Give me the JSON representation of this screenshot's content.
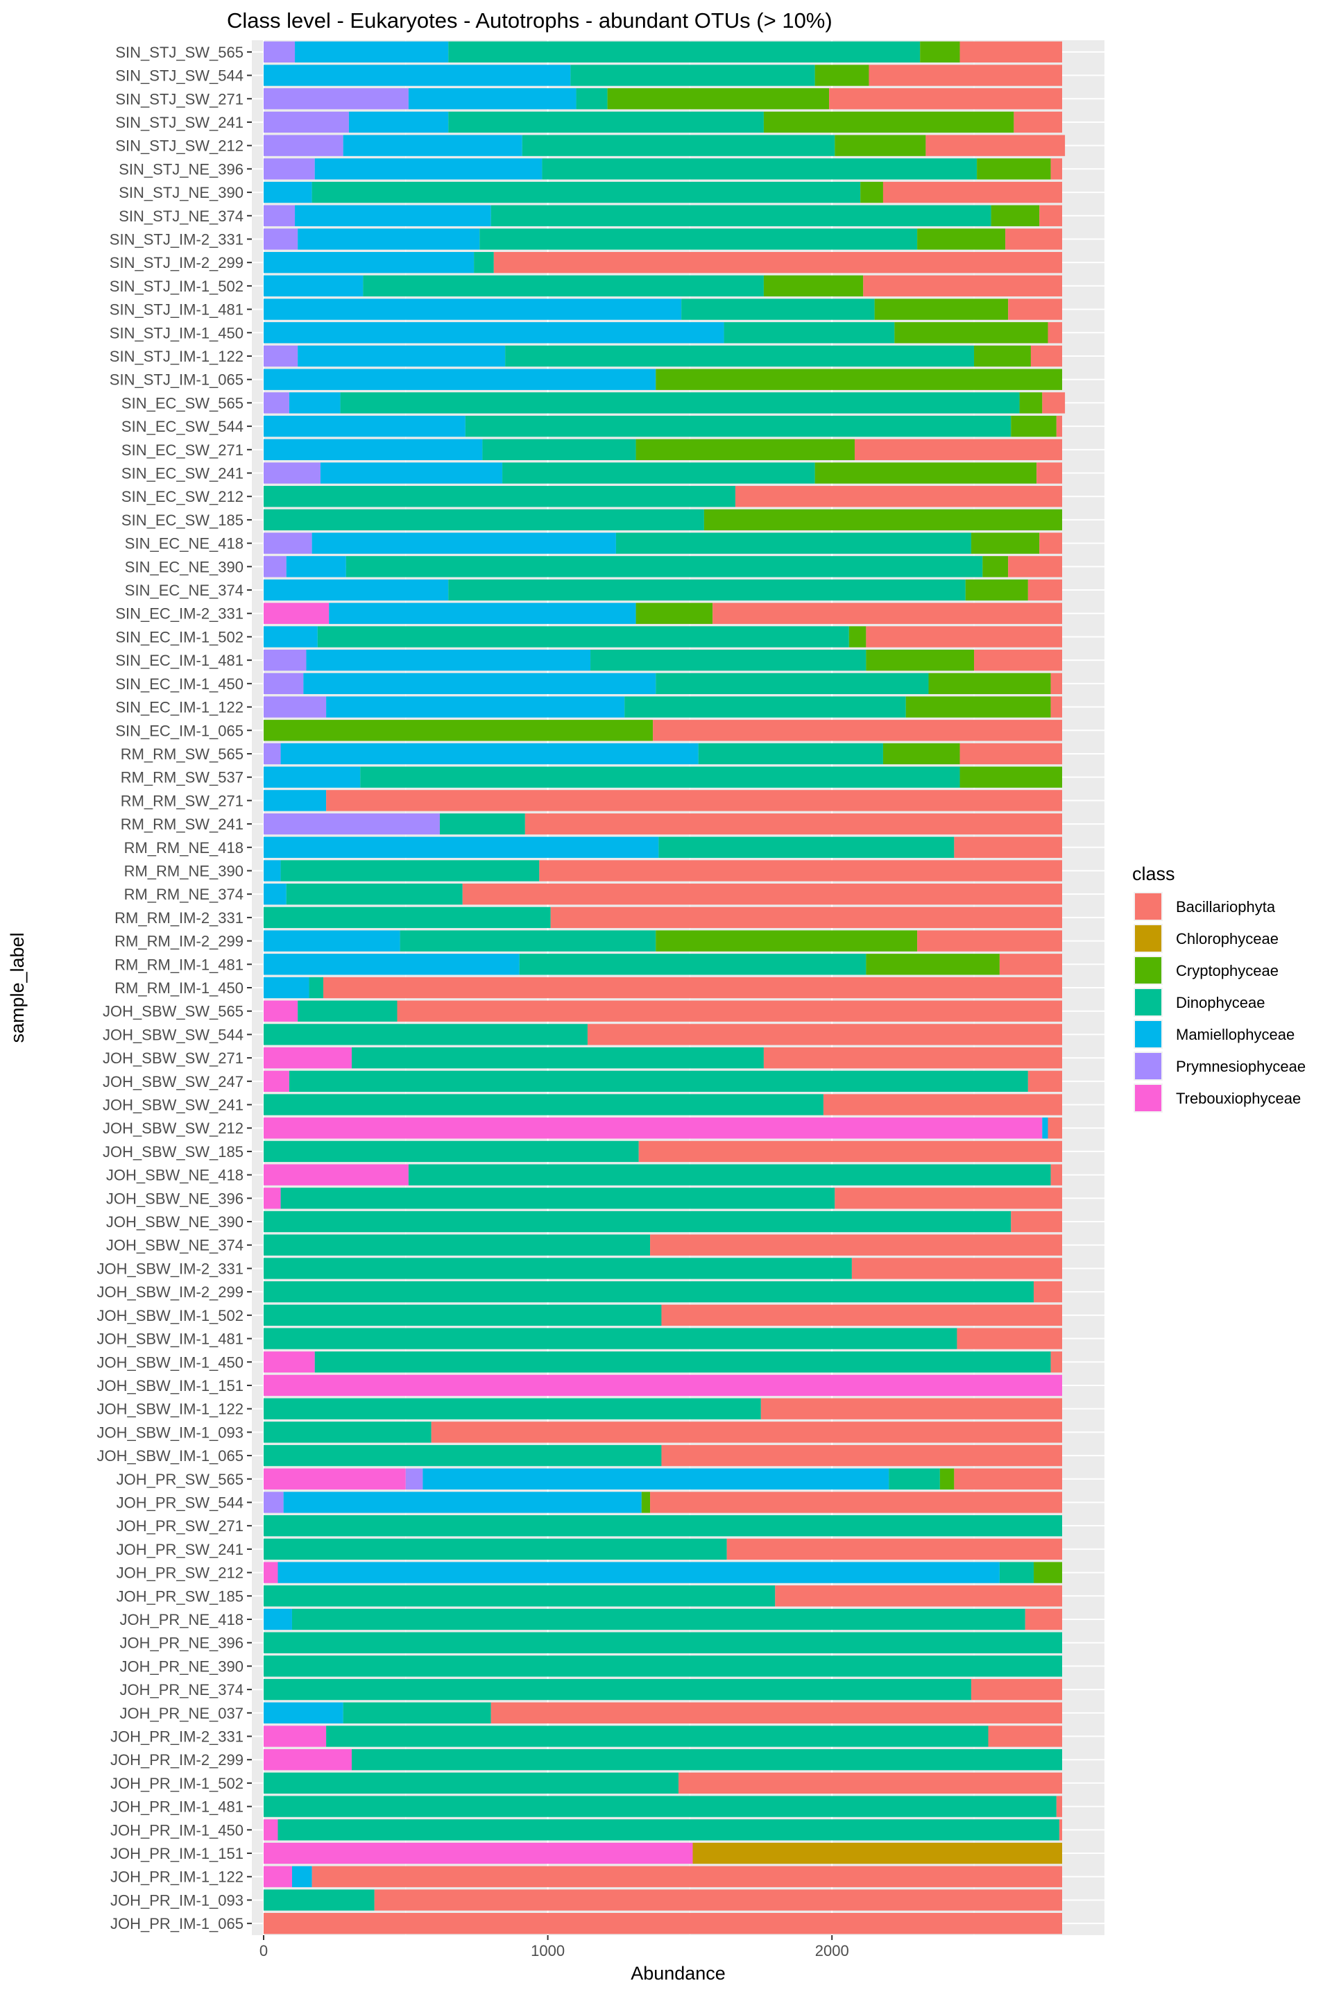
{
  "chart_data": {
    "type": "bar",
    "orientation": "horizontal",
    "stacked": true,
    "title": "Class level - Eukaryotes - Autotrophs - abundant OTUs (> 10%)",
    "xlabel": "Abundance",
    "ylabel": "sample_label",
    "xlim": [
      0,
      2820
    ],
    "xticks": [
      0,
      1000,
      2000
    ],
    "xtick_labels": [
      "0",
      "1000",
      "2000"
    ],
    "grid": true,
    "legend_position": "right",
    "legend_title": "class",
    "series": [
      {
        "name": "Bacillariophyta",
        "color": "#F8766D"
      },
      {
        "name": "Chlorophyceae",
        "color": "#C49A00"
      },
      {
        "name": "Cryptophyceae",
        "color": "#53B400"
      },
      {
        "name": "Dinophyceae",
        "color": "#00C094"
      },
      {
        "name": "Mamiellophyceae",
        "color": "#00B6EB"
      },
      {
        "name": "Prymnesiophyceae",
        "color": "#A58AFF"
      },
      {
        "name": "Trebouxiophyceae",
        "color": "#FB61D7"
      }
    ],
    "categories": [
      "SIN_STJ_SW_565",
      "SIN_STJ_SW_544",
      "SIN_STJ_SW_271",
      "SIN_STJ_SW_241",
      "SIN_STJ_SW_212",
      "SIN_STJ_NE_396",
      "SIN_STJ_NE_390",
      "SIN_STJ_NE_374",
      "SIN_STJ_IM-2_331",
      "SIN_STJ_IM-2_299",
      "SIN_STJ_IM-1_502",
      "SIN_STJ_IM-1_481",
      "SIN_STJ_IM-1_450",
      "SIN_STJ_IM-1_122",
      "SIN_STJ_IM-1_065",
      "SIN_EC_SW_565",
      "SIN_EC_SW_544",
      "SIN_EC_SW_271",
      "SIN_EC_SW_241",
      "SIN_EC_SW_212",
      "SIN_EC_SW_185",
      "SIN_EC_NE_418",
      "SIN_EC_NE_390",
      "SIN_EC_NE_374",
      "SIN_EC_IM-2_331",
      "SIN_EC_IM-1_502",
      "SIN_EC_IM-1_481",
      "SIN_EC_IM-1_450",
      "SIN_EC_IM-1_122",
      "SIN_EC_IM-1_065",
      "RM_RM_SW_565",
      "RM_RM_SW_537",
      "RM_RM_SW_271",
      "RM_RM_SW_241",
      "RM_RM_NE_418",
      "RM_RM_NE_390",
      "RM_RM_NE_374",
      "RM_RM_IM-2_331",
      "RM_RM_IM-2_299",
      "RM_RM_IM-1_481",
      "RM_RM_IM-1_450",
      "JOH_SBW_SW_565",
      "JOH_SBW_SW_544",
      "JOH_SBW_SW_271",
      "JOH_SBW_SW_247",
      "JOH_SBW_SW_241",
      "JOH_SBW_SW_212",
      "JOH_SBW_SW_185",
      "JOH_SBW_NE_418",
      "JOH_SBW_NE_396",
      "JOH_SBW_NE_390",
      "JOH_SBW_NE_374",
      "JOH_SBW_IM-2_331",
      "JOH_SBW_IM-2_299",
      "JOH_SBW_IM-1_502",
      "JOH_SBW_IM-1_481",
      "JOH_SBW_IM-1_450",
      "JOH_SBW_IM-1_151",
      "JOH_SBW_IM-1_122",
      "JOH_SBW_IM-1_093",
      "JOH_SBW_IM-1_065",
      "JOH_PR_SW_565",
      "JOH_PR_SW_544",
      "JOH_PR_SW_271",
      "JOH_PR_SW_241",
      "JOH_PR_SW_212",
      "JOH_PR_SW_185",
      "JOH_PR_NE_418",
      "JOH_PR_NE_396",
      "JOH_PR_NE_390",
      "JOH_PR_NE_374",
      "JOH_PR_NE_037",
      "JOH_PR_IM-2_331",
      "JOH_PR_IM-2_299",
      "JOH_PR_IM-1_502",
      "JOH_PR_IM-1_481",
      "JOH_PR_IM-1_450",
      "JOH_PR_IM-1_151",
      "JOH_PR_IM-1_122",
      "JOH_PR_IM-1_093",
      "JOH_PR_IM-1_065"
    ],
    "stack_order": [
      "Trebouxiophyceae",
      "Prymnesiophyceae",
      "Mamiellophyceae",
      "Dinophyceae",
      "Cryptophyceae",
      "Chlorophyceae",
      "Bacillariophyta"
    ],
    "values": [
      {
        "Prymnesiophyceae": 110,
        "Mamiellophyceae": 540,
        "Dinophyceae": 1660,
        "Cryptophyceae": 140,
        "Bacillariophyta": 360
      },
      {
        "Mamiellophyceae": 1080,
        "Dinophyceae": 860,
        "Cryptophyceae": 190,
        "Bacillariophyta": 680
      },
      {
        "Prymnesiophyceae": 510,
        "Mamiellophyceae": 590,
        "Dinophyceae": 110,
        "Cryptophyceae": 780,
        "Bacillariophyta": 820
      },
      {
        "Prymnesiophyceae": 300,
        "Mamiellophyceae": 350,
        "Dinophyceae": 1110,
        "Cryptophyceae": 880,
        "Bacillariophyta": 170
      },
      {
        "Prymnesiophyceae": 280,
        "Mamiellophyceae": 630,
        "Dinophyceae": 1100,
        "Cryptophyceae": 320,
        "Bacillariophyta": 490
      },
      {
        "Prymnesiophyceae": 180,
        "Mamiellophyceae": 800,
        "Dinophyceae": 1530,
        "Cryptophyceae": 260,
        "Bacillariophyta": 40
      },
      {
        "Mamiellophyceae": 170,
        "Dinophyceae": 1930,
        "Cryptophyceae": 80,
        "Bacillariophyta": 630
      },
      {
        "Prymnesiophyceae": 110,
        "Mamiellophyceae": 690,
        "Dinophyceae": 1760,
        "Cryptophyceae": 170,
        "Bacillariophyta": 80
      },
      {
        "Prymnesiophyceae": 120,
        "Mamiellophyceae": 640,
        "Dinophyceae": 1540,
        "Cryptophyceae": 310,
        "Bacillariophyta": 200
      },
      {
        "Mamiellophyceae": 740,
        "Dinophyceae": 70,
        "Bacillariophyta": 2000
      },
      {
        "Mamiellophyceae": 350,
        "Dinophyceae": 1410,
        "Cryptophyceae": 350,
        "Bacillariophyta": 700
      },
      {
        "Mamiellophyceae": 1470,
        "Dinophyceae": 680,
        "Cryptophyceae": 470,
        "Bacillariophyta": 190
      },
      {
        "Mamiellophyceae": 1620,
        "Dinophyceae": 600,
        "Cryptophyceae": 540,
        "Bacillariophyta": 50
      },
      {
        "Prymnesiophyceae": 120,
        "Mamiellophyceae": 730,
        "Dinophyceae": 1650,
        "Cryptophyceae": 200,
        "Bacillariophyta": 110
      },
      {
        "Mamiellophyceae": 1380,
        "Cryptophyceae": 1430
      },
      {
        "Prymnesiophyceae": 90,
        "Mamiellophyceae": 180,
        "Dinophyceae": 2390,
        "Cryptophyceae": 80,
        "Bacillariophyta": 80
      },
      {
        "Mamiellophyceae": 710,
        "Dinophyceae": 1920,
        "Cryptophyceae": 160,
        "Bacillariophyta": 20
      },
      {
        "Mamiellophyceae": 770,
        "Dinophyceae": 540,
        "Cryptophyceae": 770,
        "Bacillariophyta": 730
      },
      {
        "Prymnesiophyceae": 200,
        "Mamiellophyceae": 640,
        "Dinophyceae": 1100,
        "Cryptophyceae": 780,
        "Bacillariophyta": 90
      },
      {
        "Dinophyceae": 1660,
        "Bacillariophyta": 1150
      },
      {
        "Dinophyceae": 1550,
        "Cryptophyceae": 1260
      },
      {
        "Prymnesiophyceae": 170,
        "Mamiellophyceae": 1070,
        "Dinophyceae": 1250,
        "Cryptophyceae": 240,
        "Bacillariophyta": 80
      },
      {
        "Prymnesiophyceae": 80,
        "Mamiellophyceae": 210,
        "Dinophyceae": 2240,
        "Cryptophyceae": 90,
        "Bacillariophyta": 190
      },
      {
        "Mamiellophyceae": 650,
        "Dinophyceae": 1820,
        "Cryptophyceae": 220,
        "Bacillariophyta": 120
      },
      {
        "Trebouxiophyceae": 230,
        "Mamiellophyceae": 1080,
        "Cryptophyceae": 270,
        "Bacillariophyta": 1230
      },
      {
        "Mamiellophyceae": 190,
        "Dinophyceae": 1870,
        "Cryptophyceae": 60,
        "Bacillariophyta": 690
      },
      {
        "Prymnesiophyceae": 150,
        "Mamiellophyceae": 1000,
        "Dinophyceae": 970,
        "Cryptophyceae": 380,
        "Bacillariophyta": 310
      },
      {
        "Prymnesiophyceae": 140,
        "Mamiellophyceae": 1240,
        "Dinophyceae": 960,
        "Cryptophyceae": 430,
        "Bacillariophyta": 40
      },
      {
        "Prymnesiophyceae": 220,
        "Mamiellophyceae": 1050,
        "Dinophyceae": 990,
        "Cryptophyceae": 510,
        "Bacillariophyta": 40
      },
      {
        "Cryptophyceae": 1370,
        "Bacillariophyta": 1440
      },
      {
        "Prymnesiophyceae": 60,
        "Mamiellophyceae": 1470,
        "Dinophyceae": 650,
        "Cryptophyceae": 270,
        "Bacillariophyta": 360
      },
      {
        "Mamiellophyceae": 340,
        "Dinophyceae": 2110,
        "Cryptophyceae": 360
      },
      {
        "Mamiellophyceae": 220,
        "Bacillariophyta": 2590
      },
      {
        "Prymnesiophyceae": 620,
        "Dinophyceae": 300,
        "Bacillariophyta": 1890
      },
      {
        "Mamiellophyceae": 1390,
        "Dinophyceae": 1040,
        "Bacillariophyta": 380
      },
      {
        "Mamiellophyceae": 60,
        "Dinophyceae": 910,
        "Bacillariophyta": 1840
      },
      {
        "Mamiellophyceae": 80,
        "Dinophyceae": 620,
        "Bacillariophyta": 2110
      },
      {
        "Dinophyceae": 1010,
        "Bacillariophyta": 1800
      },
      {
        "Mamiellophyceae": 480,
        "Dinophyceae": 900,
        "Cryptophyceae": 920,
        "Bacillariophyta": 510
      },
      {
        "Mamiellophyceae": 900,
        "Dinophyceae": 1220,
        "Cryptophyceae": 470,
        "Bacillariophyta": 220
      },
      {
        "Mamiellophyceae": 160,
        "Dinophyceae": 50,
        "Bacillariophyta": 2600
      },
      {
        "Trebouxiophyceae": 120,
        "Dinophyceae": 350,
        "Bacillariophyta": 2340
      },
      {
        "Dinophyceae": 1140,
        "Bacillariophyta": 1670
      },
      {
        "Trebouxiophyceae": 310,
        "Dinophyceae": 1450,
        "Bacillariophyta": 1050
      },
      {
        "Trebouxiophyceae": 90,
        "Dinophyceae": 2600,
        "Bacillariophyta": 120
      },
      {
        "Dinophyceae": 1970,
        "Bacillariophyta": 840
      },
      {
        "Trebouxiophyceae": 2740,
        "Mamiellophyceae": 20,
        "Bacillariophyta": 50
      },
      {
        "Dinophyceae": 1320,
        "Bacillariophyta": 1490
      },
      {
        "Trebouxiophyceae": 510,
        "Dinophyceae": 2260,
        "Bacillariophyta": 40
      },
      {
        "Trebouxiophyceae": 60,
        "Dinophyceae": 1950,
        "Bacillariophyta": 800
      },
      {
        "Dinophyceae": 2630,
        "Bacillariophyta": 180
      },
      {
        "Dinophyceae": 1360,
        "Bacillariophyta": 1450
      },
      {
        "Dinophyceae": 2070,
        "Bacillariophyta": 740
      },
      {
        "Dinophyceae": 2710,
        "Bacillariophyta": 100
      },
      {
        "Dinophyceae": 1400,
        "Bacillariophyta": 1410
      },
      {
        "Dinophyceae": 2440,
        "Bacillariophyta": 370
      },
      {
        "Trebouxiophyceae": 180,
        "Dinophyceae": 2590,
        "Bacillariophyta": 40
      },
      {
        "Trebouxiophyceae": 2810
      },
      {
        "Dinophyceae": 1750,
        "Bacillariophyta": 1060
      },
      {
        "Dinophyceae": 590,
        "Bacillariophyta": 2220
      },
      {
        "Dinophyceae": 1400,
        "Bacillariophyta": 1410
      },
      {
        "Trebouxiophyceae": 500,
        "Prymnesiophyceae": 60,
        "Mamiellophyceae": 1640,
        "Dinophyceae": 180,
        "Cryptophyceae": 50,
        "Bacillariophyta": 380
      },
      {
        "Prymnesiophyceae": 70,
        "Mamiellophyceae": 1260,
        "Cryptophyceae": 30,
        "Bacillariophyta": 1450
      },
      {
        "Dinophyceae": 2810
      },
      {
        "Dinophyceae": 1630,
        "Bacillariophyta": 1180
      },
      {
        "Trebouxiophyceae": 50,
        "Mamiellophyceae": 2540,
        "Dinophyceae": 120,
        "Cryptophyceae": 100
      },
      {
        "Dinophyceae": 1800,
        "Bacillariophyta": 1010
      },
      {
        "Mamiellophyceae": 100,
        "Dinophyceae": 2580,
        "Bacillariophyta": 130
      },
      {
        "Dinophyceae": 2810
      },
      {
        "Dinophyceae": 2810
      },
      {
        "Dinophyceae": 2490,
        "Bacillariophyta": 320
      },
      {
        "Mamiellophyceae": 280,
        "Dinophyceae": 520,
        "Bacillariophyta": 2010
      },
      {
        "Trebouxiophyceae": 220,
        "Dinophyceae": 2330,
        "Bacillariophyta": 260
      },
      {
        "Trebouxiophyceae": 310,
        "Dinophyceae": 2500
      },
      {
        "Dinophyceae": 1460,
        "Bacillariophyta": 1350
      },
      {
        "Dinophyceae": 2790,
        "Bacillariophyta": 20
      },
      {
        "Trebouxiophyceae": 50,
        "Dinophyceae": 2750,
        "Bacillariophyta": 10
      },
      {
        "Trebouxiophyceae": 1510,
        "Chlorophyceae": 1300
      },
      {
        "Trebouxiophyceae": 100,
        "Mamiellophyceae": 70,
        "Bacillariophyta": 2640
      },
      {
        "Dinophyceae": 390,
        "Bacillariophyta": 2420
      },
      {
        "Bacillariophyta": 2810
      }
    ]
  }
}
